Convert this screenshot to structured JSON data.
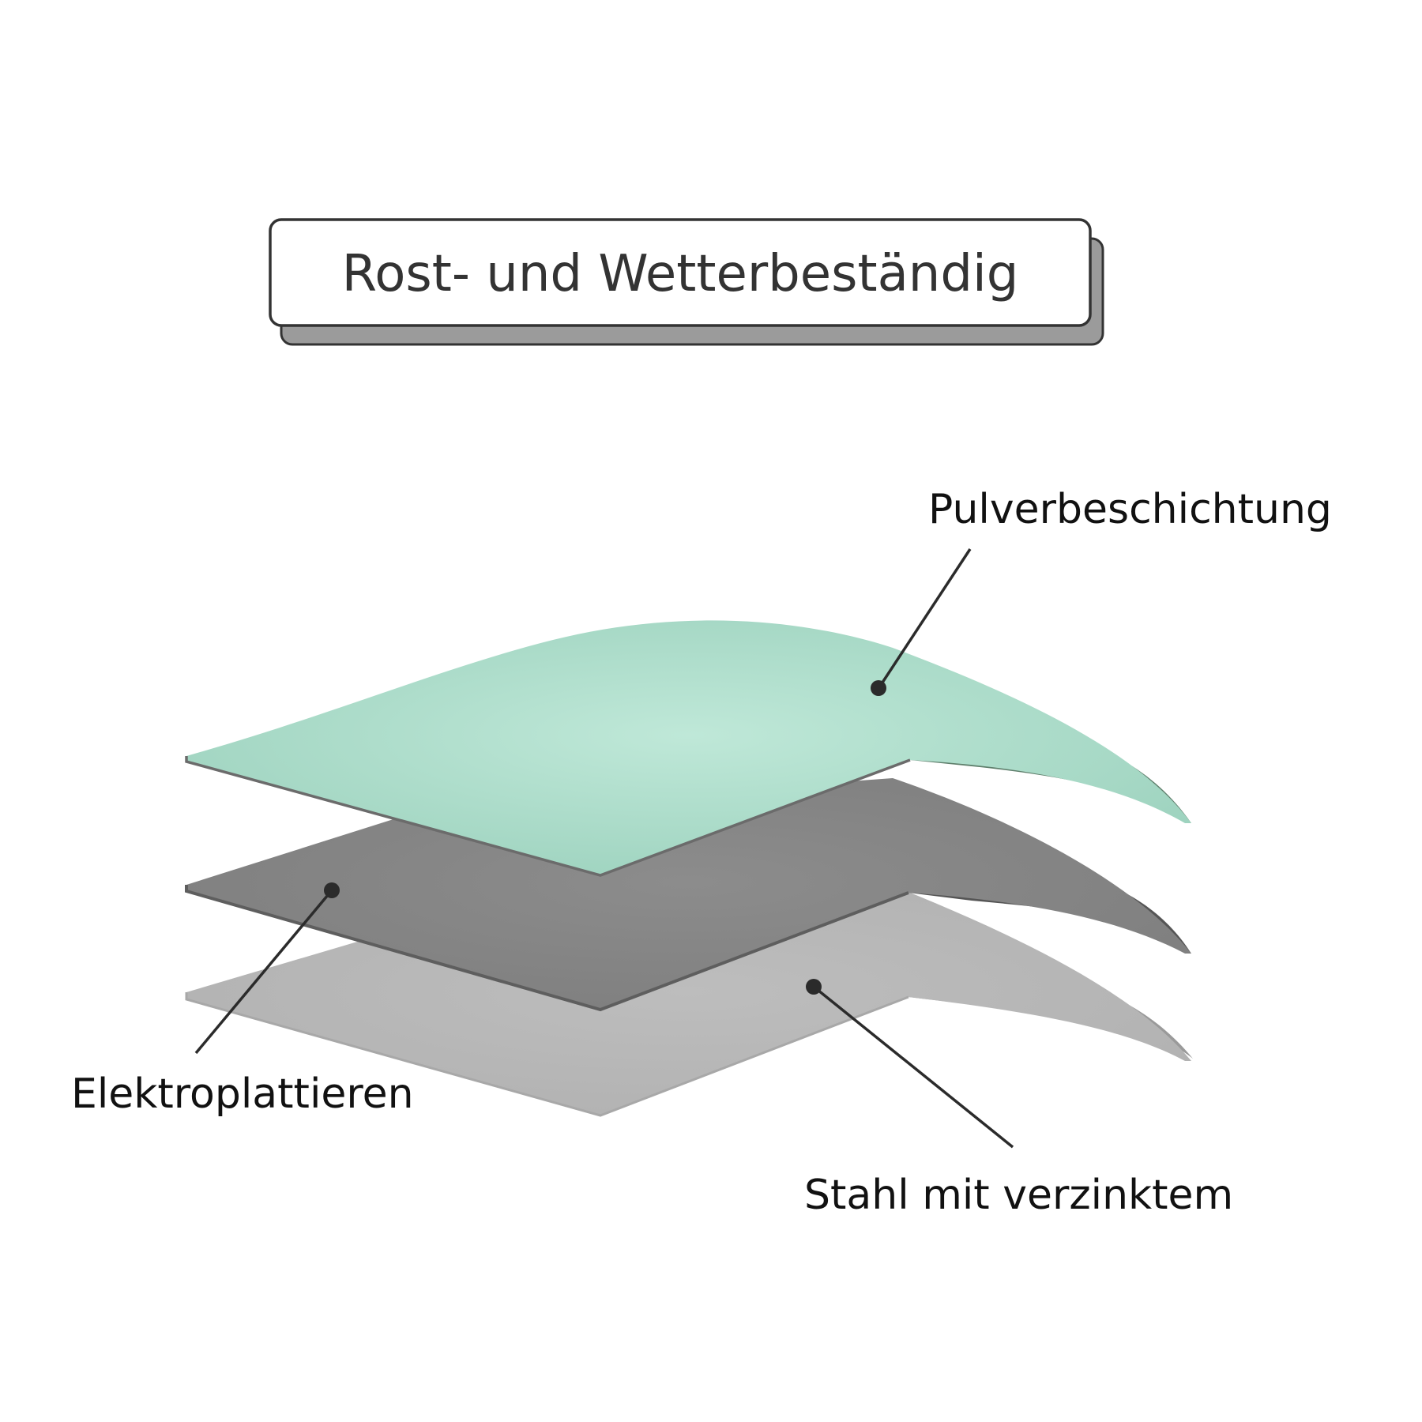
{
  "title": "Rost- und Wetterbeständig",
  "layers": [
    {
      "id": "powder",
      "label": "Pulverbeschichtung",
      "top_color": "#a9dcc8",
      "top_highlight": "#bfe8d8",
      "under_color": "#5f7f6c"
    },
    {
      "id": "electro",
      "label": "Elektroplattieren",
      "top_color": "#868686",
      "top_highlight": "#8f8f8f",
      "under_color": "#555555"
    },
    {
      "id": "steel",
      "label": "Stahl mit verzinktem",
      "top_color": "#b7b7b7",
      "top_highlight": "#bdbdbd",
      "under_color": "#9a9a9a"
    }
  ],
  "colors": {
    "background": "#ffffff",
    "title_border": "#333333",
    "title_shadow": "#9b9b9b",
    "text": "#111111"
  }
}
